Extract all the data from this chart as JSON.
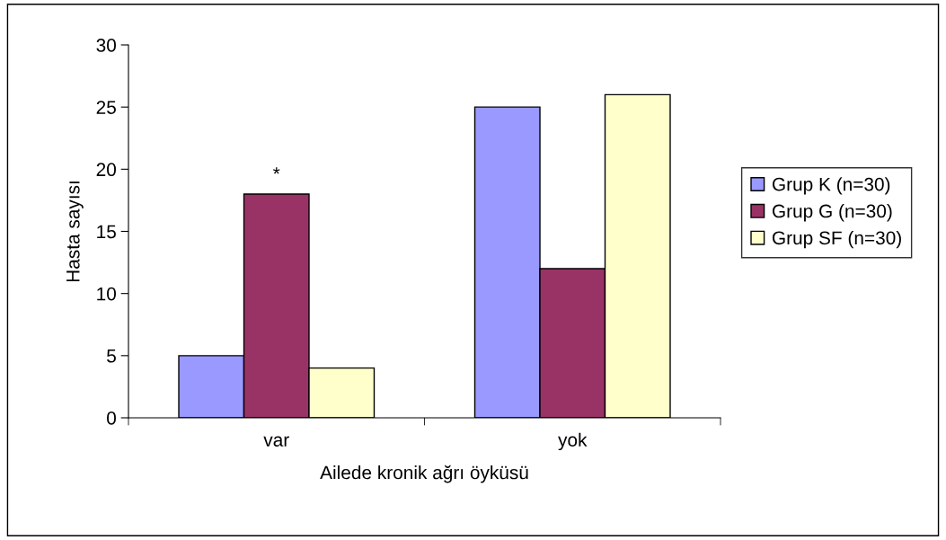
{
  "chart_data": {
    "type": "bar",
    "xlabel": "Ailede kronik ağrı öyküsü",
    "ylabel": "Hasta sayısı",
    "categories": [
      "var",
      "yok"
    ],
    "series": [
      {
        "name": "Grup K (n=30)",
        "color": "#9999ff",
        "values": [
          5,
          25
        ]
      },
      {
        "name": "Grup G (n=30)",
        "color": "#993366",
        "values": [
          18,
          12
        ]
      },
      {
        "name": "Grup SF (n=30)",
        "color": "#ffffcc",
        "values": [
          4,
          26
        ]
      }
    ],
    "ylim": [
      0,
      30
    ],
    "yticks": [
      0,
      5,
      10,
      15,
      20,
      25,
      30
    ],
    "grid": false,
    "legend": "right",
    "annotations": [
      {
        "text": "*",
        "x": "var",
        "y": 18
      }
    ]
  }
}
